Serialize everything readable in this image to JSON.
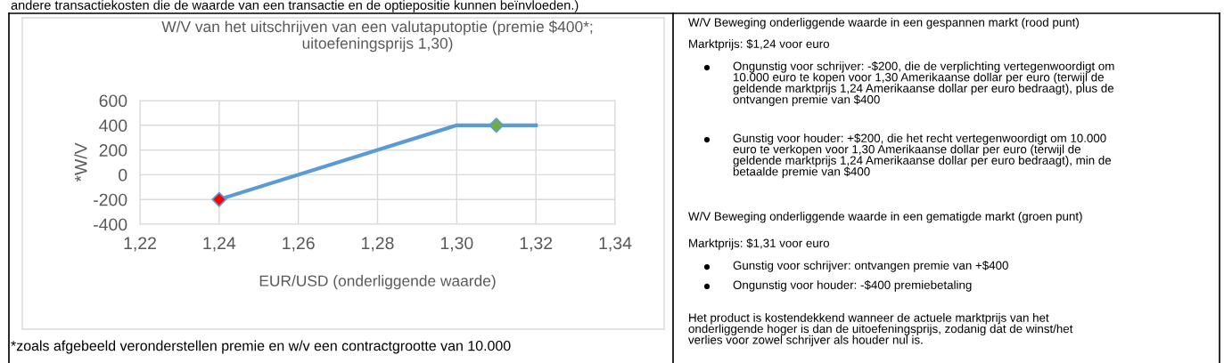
{
  "chart_data": {
    "type": "line",
    "title": "W/V van het uitschrijven van een valutaputoptie (premie $400*;\nuitoefeningsprijs 1,30)",
    "xlabel": "EUR/USD (onderliggende waarde)",
    "ylabel": "*W/V",
    "xlim": [
      1.22,
      1.34
    ],
    "xticks": [
      {
        "value": 1.22,
        "label": "1,22"
      },
      {
        "value": 1.24,
        "label": "1,24"
      },
      {
        "value": 1.26,
        "label": "1,26"
      },
      {
        "value": 1.28,
        "label": "1,28"
      },
      {
        "value": 1.3,
        "label": "1,30"
      },
      {
        "value": 1.32,
        "label": "1,32"
      },
      {
        "value": 1.34,
        "label": "1,34"
      }
    ],
    "ylim": [
      -400,
      600
    ],
    "yticks": [
      -400,
      -200,
      0,
      200,
      400,
      600
    ],
    "grid": true,
    "series": [
      {
        "color": "#5b9bd5",
        "x": [
          1.24,
          1.3,
          1.32
        ],
        "values": [
          -200,
          400,
          400
        ],
        "marker": "none"
      },
      {
        "type": "scatter",
        "color": "#ff0000",
        "x": [
          1.24
        ],
        "values": [
          -200
        ],
        "marker": "diamond"
      },
      {
        "type": "scatter",
        "color": "#70ad47",
        "x": [
          1.31
        ],
        "values": [
          400
        ],
        "marker": "diamond"
      }
    ],
    "annotations": [
      "andere transactiekosten die de waarde van een transactie en de optiepositie kunnen beïnvloeden.)",
      "*zoals afgebeeld veronderstellen premie en w/v een contractgrootte van 10.000",
      "W/V Beweging onderliggende waarde in een gespannen markt (rood punt)",
      "Marktprijs: $1,24 voor euro",
      "Ongunstig voor schrijver: -$200, die de verplichting vertegenwoordigt om\n10.000 euro te kopen voor 1,30 Amerikaanse dollar per euro (terwijl de\ngeldende marktprijs 1,24 Amerikaanse dollar per euro bedraagt), plus de\nontvangen premie van $400",
      "Gunstig voor houder: +$200, die het recht vertegenwoordigt om 10.000\neuro te verkopen voor 1,30 Amerikaanse dollar per euro (terwijl de\ngeldende marktprijs 1,24 Amerikaanse dollar per euro bedraagt), min de\nbetaalde premie van $400",
      "W/V Beweging onderliggende waarde in een gematigde markt (groen punt)",
      "Marktprijs: $1,31 voor euro",
      "Gunstig voor schrijver: ontvangen premie van +$400",
      "Ongunstig voor houder: -$400 premiebetaling",
      "Het product is kostendekkend wanneer de actuele marktprijs van het\nonderliggende hoger is dan de uitoefeningsprijs, zodanig dat de winst/het\nverlies voor zowel schrijver als houder nul is."
    ]
  }
}
